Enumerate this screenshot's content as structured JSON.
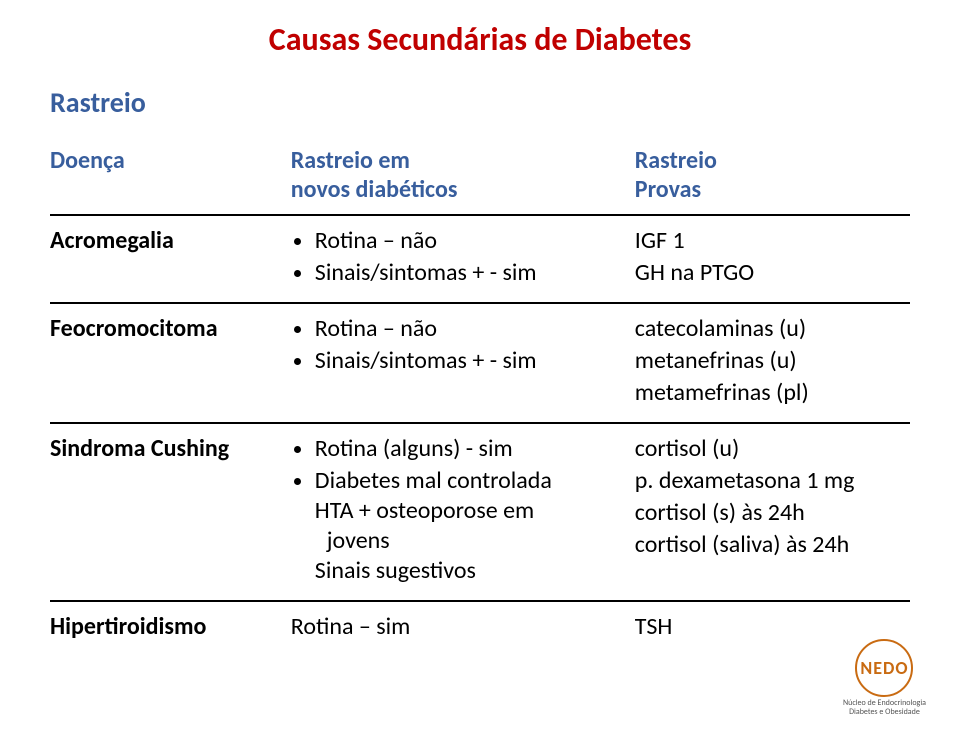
{
  "colors": {
    "title": "#c00000",
    "subtitle": "#385e9d",
    "headers": "#385e9d",
    "body": "#000000",
    "logo_border": "#c96b12",
    "logo_text": "#555555"
  },
  "title": "Causas Secundárias de Diabetes",
  "subtitle": "Rastreio",
  "headers": {
    "c1": "Doença",
    "c2a": "Rastreio em",
    "c2b": "novos diabéticos",
    "c3a": "Rastreio",
    "c3b": "Provas"
  },
  "rows": [
    {
      "disease": "Acromegalia",
      "screen": [
        "Rotina – não",
        "Sinais/sintomas + - sim"
      ],
      "tests": [
        "IGF 1",
        "GH na PTGO"
      ]
    },
    {
      "disease": "Feocromocitoma",
      "screen": [
        "Rotina – não",
        "Sinais/sintomas + - sim"
      ],
      "tests": [
        "catecolaminas (u)",
        "metanefrinas (u)",
        "metamefrinas (pl)"
      ]
    },
    {
      "disease": "Sindroma Cushing",
      "screen": [
        "Rotina (alguns) - sim",
        "Diabetes mal  controlada",
        "HTA + osteoporose em",
        "   jovens",
        "Sinais sugestivos"
      ],
      "screen_indent": [
        false,
        false,
        false,
        true,
        false
      ],
      "tests": [
        "cortisol (u)",
        "p. dexametasona 1 mg",
        "cortisol (s) às 24h",
        "cortisol (saliva) às 24h"
      ]
    },
    {
      "disease": "Hipertiroidismo",
      "screen_plain": "Rotina – sim",
      "tests_plain": "TSH"
    }
  ],
  "logo": {
    "abbr": "NEDO",
    "line1": "Núcleo de Endocrinologia",
    "line2": "Diabetes e Obesidade"
  }
}
